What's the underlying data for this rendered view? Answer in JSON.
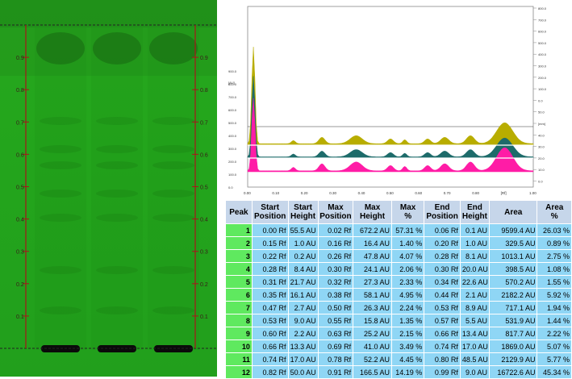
{
  "plate": {
    "rf_ticks": [
      "0.9",
      "0.8",
      "0.7",
      "0.6",
      "0.5",
      "0.4",
      "0.3",
      "0.2",
      "0.1"
    ],
    "lanes": 3
  },
  "densitogram": {
    "y_ticks": [
      "900.0",
      "800.0",
      "700.0",
      "600.0",
      "500.0",
      "400.0",
      "300.0",
      "200.0",
      "100.0",
      "0.0"
    ],
    "y_unit": "[AU]",
    "x_ticks": [
      "0.00",
      "0.10",
      "0.20",
      "0.30",
      "0.40",
      "0.50",
      "0.60",
      "0.70",
      "0.80",
      "[Rf]",
      "1.00"
    ],
    "right_ticks": [
      "800.0",
      "700.0",
      "600.0",
      "500.0",
      "400.0",
      "300.0",
      "200.0",
      "100.0",
      "0.0",
      "50.0",
      "[mm]",
      "40.0",
      "30.0",
      "20.0",
      "10.0",
      "0.0"
    ],
    "colors": {
      "yellow": "#b8ad00",
      "teal": "#1d6b6a",
      "magenta": "#ff1ca6"
    }
  },
  "table": {
    "headers": [
      [
        "Peak"
      ],
      [
        "Start",
        "Position"
      ],
      [
        "Start",
        "Height"
      ],
      [
        "Max",
        "Position"
      ],
      [
        "Max",
        "Height"
      ],
      [
        "Max",
        "%"
      ],
      [
        "End",
        "Position"
      ],
      [
        "End",
        "Height"
      ],
      [
        "Area"
      ],
      [
        "Area",
        "%"
      ]
    ],
    "rows": [
      [
        "1",
        "0.00 Rf",
        "55.5 AU",
        "0.02 Rf",
        "672.2 AU",
        "57.31 %",
        "0.06 Rf",
        "0.1 AU",
        "9599.4 AU",
        "26.03 %"
      ],
      [
        "2",
        "0.15 Rf",
        "1.0 AU",
        "0.16 Rf",
        "16.4 AU",
        "1.40 %",
        "0.20 Rf",
        "1.0 AU",
        "329.5 AU",
        "0.89 %"
      ],
      [
        "3",
        "0.22 Rf",
        "0.2 AU",
        "0.26 Rf",
        "47.8 AU",
        "4.07 %",
        "0.28 Rf",
        "8.1 AU",
        "1013.1 AU",
        "2.75 %"
      ],
      [
        "4",
        "0.28 Rf",
        "8.4 AU",
        "0.30 Rf",
        "24.1 AU",
        "2.06 %",
        "0.30 Rf",
        "20.0 AU",
        "398.5 AU",
        "1.08 %"
      ],
      [
        "5",
        "0.31 Rf",
        "21.7 AU",
        "0.32 Rf",
        "27.3 AU",
        "2.33 %",
        "0.34 Rf",
        "22.6 AU",
        "570.2 AU",
        "1.55 %"
      ],
      [
        "6",
        "0.35 Rf",
        "16.1 AU",
        "0.38 Rf",
        "58.1 AU",
        "4.95 %",
        "0.44 Rf",
        "2.1 AU",
        "2182.2 AU",
        "5.92 %"
      ],
      [
        "7",
        "0.47 Rf",
        "2.7 AU",
        "0.50 Rf",
        "26.3 AU",
        "2.24 %",
        "0.53 Rf",
        "8.9 AU",
        "717.1 AU",
        "1.94 %"
      ],
      [
        "8",
        "0.53 Rf",
        "9.0 AU",
        "0.55 Rf",
        "15.8 AU",
        "1.35 %",
        "0.57 Rf",
        "5.5 AU",
        "531.9 AU",
        "1.44 %"
      ],
      [
        "9",
        "0.60 Rf",
        "2.2 AU",
        "0.63 Rf",
        "25.2 AU",
        "2.15 %",
        "0.66 Rf",
        "13.4 AU",
        "817.7 AU",
        "2.22 %"
      ],
      [
        "10",
        "0.66 Rf",
        "13.3 AU",
        "0.69 Rf",
        "41.0 AU",
        "3.49 %",
        "0.74 Rf",
        "17.0 AU",
        "1869.0 AU",
        "5.07 %"
      ],
      [
        "11",
        "0.74 Rf",
        "17.0 AU",
        "0.78 Rf",
        "52.2 AU",
        "4.45 %",
        "0.80 Rf",
        "48.5 AU",
        "2129.9 AU",
        "5.77 %"
      ],
      [
        "12",
        "0.82 Rf",
        "50.0 AU",
        "0.91 Rf",
        "166.5 AU",
        "14.19 %",
        "0.99 Rf",
        "9.0 AU",
        "16722.6 AU",
        "45.34 %"
      ]
    ]
  }
}
